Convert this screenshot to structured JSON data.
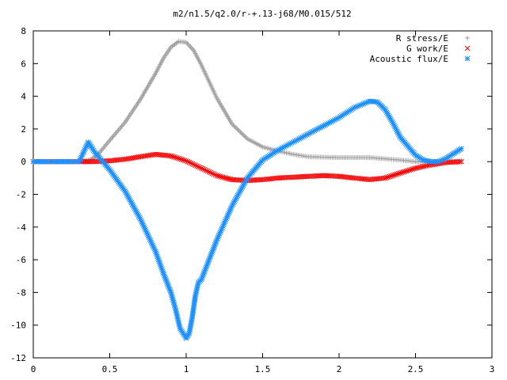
{
  "chart_data": {
    "type": "scatter",
    "title": "m2/n1.5/q2.0/r-+.13-j68/M0.015/512",
    "xlabel": "",
    "ylabel": "",
    "xlim": [
      0,
      3
    ],
    "ylim": [
      -12,
      8
    ],
    "x_ticks": [
      "0",
      "0.5",
      "1",
      "1.5",
      "2",
      "2.5",
      "3"
    ],
    "y_ticks": [
      "-12",
      "-10",
      "-8",
      "-6",
      "-4",
      "-2",
      "0",
      "2",
      "4",
      "6",
      "8"
    ],
    "grid": false,
    "legend_position": "top-right",
    "series": [
      {
        "name": "R stress/E",
        "marker": "+",
        "color": "#a0a0a0",
        "points": [
          [
            0.0,
            0
          ],
          [
            0.1,
            0
          ],
          [
            0.2,
            0
          ],
          [
            0.3,
            0
          ],
          [
            0.37,
            0.1
          ],
          [
            0.42,
            0.4
          ],
          [
            0.5,
            1.3
          ],
          [
            0.6,
            2.4
          ],
          [
            0.7,
            3.8
          ],
          [
            0.8,
            5.4
          ],
          [
            0.85,
            6.3
          ],
          [
            0.9,
            7.0
          ],
          [
            0.95,
            7.35
          ],
          [
            1.0,
            7.3
          ],
          [
            1.05,
            6.8
          ],
          [
            1.1,
            5.9
          ],
          [
            1.2,
            3.9
          ],
          [
            1.3,
            2.3
          ],
          [
            1.4,
            1.4
          ],
          [
            1.5,
            0.9
          ],
          [
            1.6,
            0.65
          ],
          [
            1.7,
            0.45
          ],
          [
            1.8,
            0.3
          ],
          [
            2.0,
            0.25
          ],
          [
            2.2,
            0.25
          ],
          [
            2.4,
            0.1
          ],
          [
            2.5,
            0.0
          ],
          [
            2.6,
            -0.05
          ],
          [
            2.7,
            0.0
          ],
          [
            2.8,
            0.05
          ]
        ]
      },
      {
        "name": "G work/E",
        "marker": "x",
        "color": "#ff0000",
        "points": [
          [
            0.0,
            0
          ],
          [
            0.1,
            0
          ],
          [
            0.2,
            0
          ],
          [
            0.3,
            0
          ],
          [
            0.37,
            0.0
          ],
          [
            0.5,
            0.05
          ],
          [
            0.6,
            0.15
          ],
          [
            0.7,
            0.3
          ],
          [
            0.8,
            0.45
          ],
          [
            0.9,
            0.35
          ],
          [
            1.0,
            0.05
          ],
          [
            1.1,
            -0.4
          ],
          [
            1.2,
            -0.85
          ],
          [
            1.3,
            -1.1
          ],
          [
            1.4,
            -1.15
          ],
          [
            1.5,
            -1.1
          ],
          [
            1.6,
            -1.0
          ],
          [
            1.7,
            -0.95
          ],
          [
            1.8,
            -0.9
          ],
          [
            1.9,
            -0.85
          ],
          [
            2.0,
            -0.9
          ],
          [
            2.1,
            -1.0
          ],
          [
            2.2,
            -1.1
          ],
          [
            2.3,
            -1.0
          ],
          [
            2.4,
            -0.7
          ],
          [
            2.5,
            -0.4
          ],
          [
            2.6,
            -0.2
          ],
          [
            2.7,
            -0.05
          ],
          [
            2.8,
            0.0
          ]
        ]
      },
      {
        "name": "Acoustic flux/E",
        "marker": "*",
        "color": "#1e90ff",
        "points": [
          [
            0.0,
            0
          ],
          [
            0.1,
            0
          ],
          [
            0.2,
            0
          ],
          [
            0.3,
            0
          ],
          [
            0.36,
            1.2
          ],
          [
            0.4,
            0.6
          ],
          [
            0.5,
            -0.5
          ],
          [
            0.6,
            -1.8
          ],
          [
            0.7,
            -3.5
          ],
          [
            0.8,
            -5.5
          ],
          [
            0.85,
            -6.8
          ],
          [
            0.9,
            -8.0
          ],
          [
            0.93,
            -9.0
          ],
          [
            0.96,
            -10.2
          ],
          [
            1.0,
            -10.8
          ],
          [
            1.02,
            -10.5
          ],
          [
            1.04,
            -9.5
          ],
          [
            1.06,
            -8.2
          ],
          [
            1.08,
            -7.4
          ],
          [
            1.1,
            -7.2
          ],
          [
            1.15,
            -6.0
          ],
          [
            1.2,
            -4.8
          ],
          [
            1.3,
            -2.7
          ],
          [
            1.4,
            -1.0
          ],
          [
            1.5,
            0.1
          ],
          [
            1.6,
            0.7
          ],
          [
            1.7,
            1.2
          ],
          [
            1.8,
            1.7
          ],
          [
            1.9,
            2.2
          ],
          [
            2.0,
            2.7
          ],
          [
            2.1,
            3.3
          ],
          [
            2.2,
            3.7
          ],
          [
            2.25,
            3.65
          ],
          [
            2.3,
            3.2
          ],
          [
            2.35,
            2.4
          ],
          [
            2.4,
            1.5
          ],
          [
            2.5,
            0.4
          ],
          [
            2.55,
            0.1
          ],
          [
            2.6,
            0.0
          ],
          [
            2.65,
            0.0
          ],
          [
            2.7,
            0.2
          ],
          [
            2.75,
            0.5
          ],
          [
            2.8,
            0.8
          ]
        ]
      }
    ]
  }
}
